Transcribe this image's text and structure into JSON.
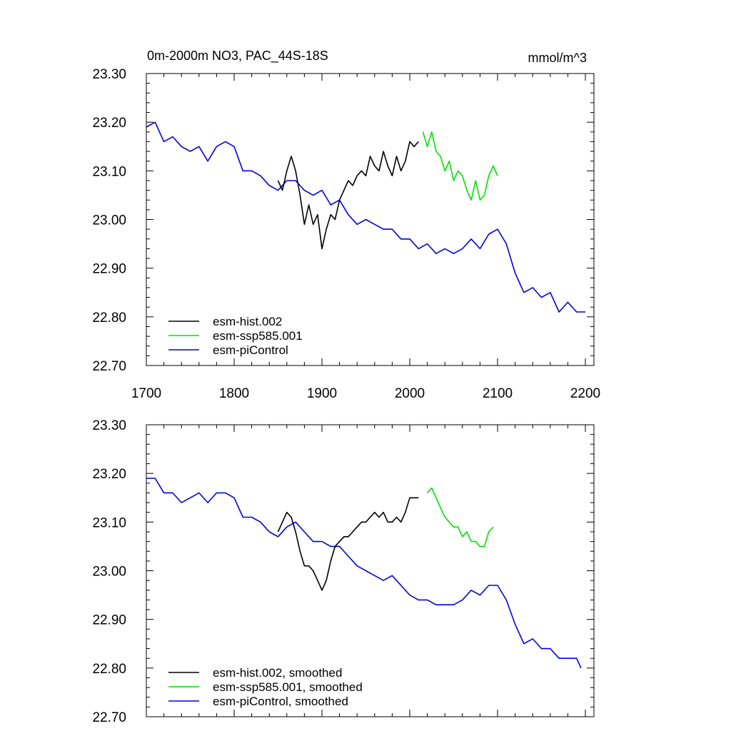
{
  "chart_data": [
    {
      "type": "line",
      "title": "0m-2000m NO3, PAC_44S-18S",
      "units": "mmol/m^3",
      "xlim": [
        1700,
        2200
      ],
      "ylim": [
        22.7,
        23.3
      ],
      "xticks": [
        1700,
        1800,
        1900,
        2000,
        2100,
        2200
      ],
      "xtick_labels": [
        "1700",
        "1800",
        "1900",
        "2000",
        "2100",
        "2200"
      ],
      "yticks": [
        22.7,
        22.8,
        22.9,
        23.0,
        23.1,
        23.2,
        23.3
      ],
      "ytick_labels": [
        "22.70",
        "22.80",
        "22.90",
        "23.00",
        "23.10",
        "23.20",
        "23.30"
      ],
      "legend_position": "bottom-left",
      "series": [
        {
          "name": "esm-hist.002",
          "color": "#000000",
          "x": [
            1850,
            1855,
            1860,
            1865,
            1870,
            1875,
            1880,
            1885,
            1890,
            1895,
            1900,
            1905,
            1910,
            1915,
            1920,
            1925,
            1930,
            1935,
            1940,
            1945,
            1950,
            1955,
            1960,
            1965,
            1970,
            1975,
            1980,
            1985,
            1990,
            1995,
            2000,
            2005,
            2010
          ],
          "y": [
            23.08,
            23.06,
            23.1,
            23.13,
            23.1,
            23.05,
            22.99,
            23.03,
            22.99,
            23.01,
            22.94,
            22.98,
            23.01,
            23.0,
            23.04,
            23.06,
            23.08,
            23.07,
            23.09,
            23.1,
            23.09,
            23.13,
            23.11,
            23.1,
            23.14,
            23.11,
            23.09,
            23.13,
            23.1,
            23.12,
            23.16,
            23.15,
            23.16
          ]
        },
        {
          "name": "esm-ssp585.001",
          "color": "#00e000",
          "x": [
            2015,
            2020,
            2025,
            2030,
            2035,
            2040,
            2045,
            2050,
            2055,
            2060,
            2065,
            2070,
            2075,
            2080,
            2085,
            2090,
            2095,
            2100
          ],
          "y": [
            23.18,
            23.15,
            23.18,
            23.14,
            23.13,
            23.1,
            23.12,
            23.08,
            23.1,
            23.09,
            23.06,
            23.04,
            23.08,
            23.04,
            23.05,
            23.09,
            23.11,
            23.09
          ]
        },
        {
          "name": "esm-piControl",
          "color": "#0000e0",
          "x": [
            1700,
            1710,
            1720,
            1730,
            1740,
            1750,
            1760,
            1770,
            1780,
            1790,
            1800,
            1810,
            1820,
            1830,
            1840,
            1850,
            1860,
            1870,
            1880,
            1890,
            1900,
            1910,
            1920,
            1930,
            1940,
            1950,
            1960,
            1970,
            1980,
            1990,
            2000,
            2010,
            2020,
            2030,
            2040,
            2050,
            2060,
            2070,
            2080,
            2090,
            2100,
            2110,
            2120,
            2130,
            2140,
            2150,
            2160,
            2170,
            2180,
            2190,
            2200
          ],
          "y": [
            23.19,
            23.2,
            23.16,
            23.17,
            23.15,
            23.14,
            23.15,
            23.12,
            23.15,
            23.16,
            23.15,
            23.1,
            23.1,
            23.09,
            23.07,
            23.06,
            23.08,
            23.08,
            23.06,
            23.05,
            23.06,
            23.03,
            23.04,
            23.01,
            22.99,
            23.0,
            22.99,
            22.98,
            22.98,
            22.96,
            22.96,
            22.94,
            22.95,
            22.93,
            22.94,
            22.93,
            22.94,
            22.96,
            22.94,
            22.97,
            22.98,
            22.95,
            22.89,
            22.85,
            22.86,
            22.84,
            22.85,
            22.81,
            22.83,
            22.81,
            22.81
          ]
        }
      ]
    },
    {
      "type": "line",
      "title": "",
      "xlim": [
        1700,
        2200
      ],
      "ylim": [
        22.7,
        23.3
      ],
      "yticks": [
        22.7,
        22.8,
        22.9,
        23.0,
        23.1,
        23.2,
        23.3
      ],
      "ytick_labels": [
        "22.70",
        "22.80",
        "22.90",
        "23.00",
        "23.10",
        "23.20",
        "23.30"
      ],
      "legend_position": "bottom-left",
      "series": [
        {
          "name": "esm-hist.002, smoothed",
          "color": "#000000",
          "x": [
            1850,
            1855,
            1860,
            1865,
            1870,
            1875,
            1880,
            1885,
            1890,
            1895,
            1900,
            1905,
            1910,
            1915,
            1920,
            1925,
            1930,
            1935,
            1940,
            1945,
            1950,
            1955,
            1960,
            1965,
            1970,
            1975,
            1980,
            1985,
            1990,
            1995,
            2000,
            2005,
            2010
          ],
          "y": [
            23.08,
            23.1,
            23.12,
            23.11,
            23.08,
            23.04,
            23.01,
            23.01,
            23.0,
            22.98,
            22.96,
            22.98,
            23.02,
            23.05,
            23.06,
            23.07,
            23.07,
            23.08,
            23.09,
            23.1,
            23.1,
            23.11,
            23.12,
            23.11,
            23.12,
            23.1,
            23.1,
            23.11,
            23.1,
            23.12,
            23.15,
            23.15,
            23.15
          ]
        },
        {
          "name": "esm-ssp585.001, smoothed",
          "color": "#00e000",
          "x": [
            2020,
            2025,
            2030,
            2035,
            2040,
            2045,
            2050,
            2055,
            2060,
            2065,
            2070,
            2075,
            2080,
            2085,
            2090,
            2095
          ],
          "y": [
            23.16,
            23.17,
            23.15,
            23.13,
            23.11,
            23.1,
            23.09,
            23.09,
            23.07,
            23.08,
            23.06,
            23.06,
            23.05,
            23.05,
            23.08,
            23.09
          ]
        },
        {
          "name": "esm-piControl, smoothed",
          "color": "#0000e0",
          "x": [
            1700,
            1710,
            1720,
            1730,
            1740,
            1750,
            1760,
            1770,
            1780,
            1790,
            1800,
            1810,
            1820,
            1830,
            1840,
            1850,
            1860,
            1870,
            1880,
            1890,
            1900,
            1910,
            1920,
            1930,
            1940,
            1950,
            1960,
            1970,
            1980,
            1990,
            2000,
            2010,
            2020,
            2030,
            2040,
            2050,
            2060,
            2070,
            2080,
            2090,
            2100,
            2110,
            2120,
            2130,
            2140,
            2150,
            2160,
            2170,
            2180,
            2190,
            2195
          ],
          "y": [
            23.19,
            23.19,
            23.16,
            23.16,
            23.14,
            23.15,
            23.16,
            23.14,
            23.16,
            23.16,
            23.15,
            23.11,
            23.11,
            23.1,
            23.08,
            23.07,
            23.09,
            23.1,
            23.08,
            23.06,
            23.06,
            23.05,
            23.05,
            23.03,
            23.01,
            23.0,
            22.99,
            22.98,
            22.99,
            22.97,
            22.95,
            22.94,
            22.94,
            22.93,
            22.93,
            22.93,
            22.94,
            22.96,
            22.95,
            22.97,
            22.97,
            22.94,
            22.89,
            22.85,
            22.86,
            22.84,
            22.84,
            22.82,
            22.82,
            22.82,
            22.8
          ]
        }
      ]
    }
  ]
}
